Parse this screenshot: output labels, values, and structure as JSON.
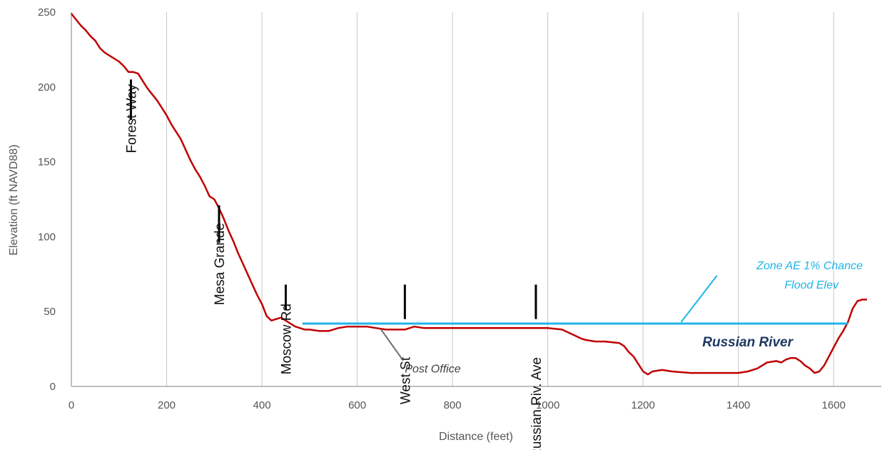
{
  "chart_data": {
    "type": "line",
    "xlabel": "Distance (feet)",
    "ylabel": "Elevation (ft NAVD88)",
    "xlim": [
      0,
      1700
    ],
    "ylim": [
      0,
      250
    ],
    "x_ticks": [
      "0",
      "200",
      "400",
      "600",
      "800",
      "1000",
      "1200",
      "1400",
      "1600"
    ],
    "y_ticks": [
      "0",
      "50",
      "100",
      "150",
      "200",
      "250"
    ],
    "grid": "vertical",
    "series": [
      {
        "color": "#c00000",
        "x": [
          0,
          10,
          20,
          30,
          40,
          50,
          60,
          70,
          80,
          90,
          100,
          110,
          120,
          130,
          140,
          150,
          160,
          170,
          180,
          190,
          200,
          210,
          220,
          230,
          240,
          250,
          260,
          270,
          280,
          290,
          300,
          310,
          320,
          330,
          340,
          350,
          360,
          370,
          380,
          390,
          400,
          410,
          420,
          430,
          440,
          450,
          460,
          470,
          480,
          490,
          500,
          520,
          540,
          560,
          580,
          600,
          620,
          640,
          660,
          680,
          700,
          720,
          740,
          760,
          780,
          800,
          850,
          900,
          950,
          1000,
          1030,
          1050,
          1070,
          1080,
          1100,
          1120,
          1150,
          1160,
          1170,
          1180,
          1190,
          1200,
          1210,
          1220,
          1240,
          1260,
          1300,
          1350,
          1380,
          1400,
          1420,
          1440,
          1460,
          1480,
          1490,
          1500,
          1510,
          1520,
          1530,
          1540,
          1550,
          1560,
          1570,
          1580,
          1590,
          1600,
          1610,
          1620,
          1630,
          1640,
          1650,
          1660,
          1670
        ],
        "y": [
          249,
          245,
          241,
          238,
          234,
          231,
          226,
          223,
          221,
          219,
          217,
          214,
          210,
          210,
          209,
          204,
          199,
          195,
          191,
          186,
          181,
          175,
          170,
          165,
          158,
          151,
          145,
          140,
          134,
          127,
          125,
          119,
          112,
          104,
          97,
          89,
          82,
          75,
          68,
          61,
          55,
          47,
          44,
          45,
          46,
          44,
          42,
          40,
          39,
          38,
          38,
          37,
          37,
          39,
          40,
          40,
          40,
          39,
          38,
          38,
          38,
          40,
          39,
          39,
          39,
          39,
          39,
          39,
          39,
          39,
          38,
          35,
          32,
          31,
          30,
          30,
          29,
          27,
          23,
          20,
          15,
          10,
          8,
          10,
          11,
          10,
          9,
          9,
          9,
          9,
          10,
          12,
          16,
          17,
          16,
          18,
          19,
          19,
          17,
          14,
          12,
          9,
          10,
          14,
          20,
          26,
          32,
          37,
          43,
          52,
          57,
          58,
          58
        ]
      },
      {
        "color": "#1fb4e8",
        "x": [
          485,
          1630
        ],
        "y": [
          42,
          42
        ]
      }
    ],
    "annotations": [
      {
        "text": "Forest Way",
        "x": 125
      },
      {
        "text": "Mesa Grande",
        "x": 310
      },
      {
        "text": "Moscow Rd",
        "x": 450
      },
      {
        "text": "West St",
        "x": 700
      },
      {
        "text": "Russian Riv. Ave",
        "x": 975
      },
      {
        "text": "Post Office",
        "x": 650
      },
      {
        "text": "Zone AE 1% Chance",
        "x": 1320
      },
      {
        "text": "Flood Elev",
        "x": 1320
      },
      {
        "text": "Russian River",
        "x": 1320
      }
    ],
    "colors": {
      "profile": "#c00000",
      "flood": "#1fb4e8",
      "river_label": "#1f3864",
      "grid": "#c8c8c8",
      "axis": "#7f7f7f",
      "leader": "#6d6d6d",
      "marker": "#000000"
    }
  }
}
